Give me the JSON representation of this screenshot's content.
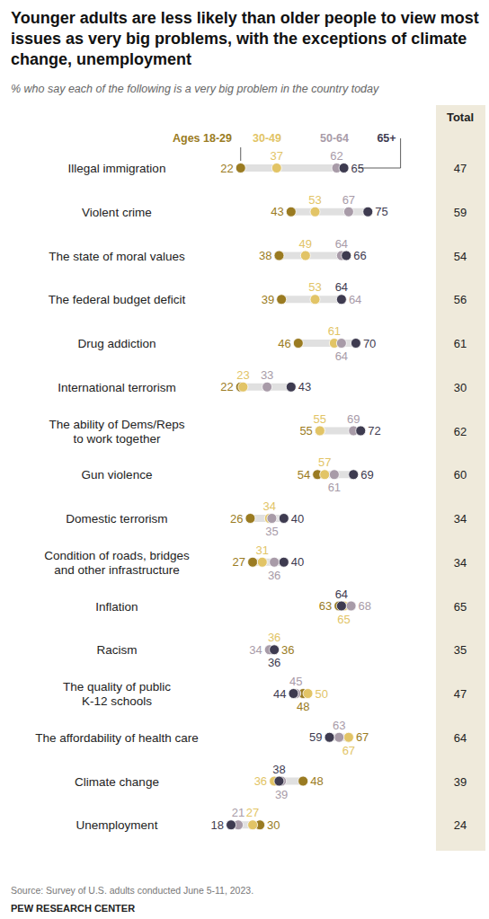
{
  "chart_data": {
    "type": "dot",
    "orientation": "horizontal",
    "title": "Younger adults are less likely than older people to view most issues as very big problems, with the exceptions of climate change, unemployment",
    "subtitle": "% who say each of the following is a very big problem in the country today",
    "categories": [
      "Illegal immigration",
      "Violent crime",
      "The state of moral values",
      "The federal budget deficit",
      "Drug addiction",
      "International terrorism",
      "The ability of Dems/Reps\nto work together",
      "Gun violence",
      "Domestic terrorism",
      "Condition of roads, bridges\nand other infrastructure",
      "Inflation",
      "Racism",
      "The quality of public\nK-12 schools",
      "The affordability of health care",
      "Climate change",
      "Unemployment"
    ],
    "series": [
      {
        "name": "Ages 18-29",
        "color": "#9a7b22",
        "values": [
          22,
          43,
          38,
          39,
          46,
          22,
          55,
          54,
          26,
          27,
          63,
          36,
          48,
          67,
          48,
          30
        ]
      },
      {
        "name": "30-49",
        "color": "#e2c466",
        "values": [
          37,
          53,
          49,
          53,
          61,
          23,
          55,
          57,
          34,
          31,
          65,
          36,
          50,
          67,
          36,
          27
        ]
      },
      {
        "name": "50-64",
        "color": "#a89ba8",
        "values": [
          62,
          67,
          64,
          64,
          64,
          33,
          69,
          61,
          35,
          36,
          68,
          34,
          45,
          63,
          39,
          21
        ]
      },
      {
        "name": "65+",
        "color": "#3e3b50",
        "values": [
          65,
          75,
          66,
          64,
          70,
          43,
          72,
          69,
          40,
          40,
          64,
          36,
          44,
          59,
          38,
          18
        ]
      }
    ],
    "totals": {
      "label": "Total",
      "values": [
        47,
        59,
        54,
        56,
        61,
        30,
        62,
        60,
        34,
        34,
        65,
        35,
        47,
        64,
        39,
        24
      ]
    },
    "xlim": [
      0,
      100
    ],
    "tick_labels": false,
    "data_labels": true,
    "legend": "top",
    "source": "Source: Survey of U.S. adults conducted June 5-11, 2023.",
    "footer": "PEW RESEARCH CENTER"
  }
}
